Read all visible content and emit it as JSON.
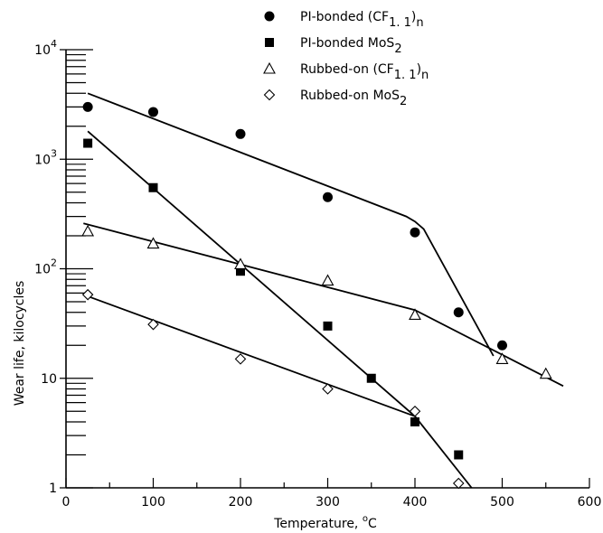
{
  "chart_data": {
    "type": "scatter",
    "title": "",
    "xlabel": "Temperature, °C",
    "ylabel": "Wear life, kilocycles",
    "xlim": [
      0,
      600
    ],
    "ylim": [
      1,
      10000
    ],
    "yscale": "log",
    "grid": false,
    "legend_position": "top-right",
    "x_ticks": [
      "0",
      "100",
      "200",
      "300",
      "400",
      "500",
      "600"
    ],
    "y_ticks": [
      {
        "value": 1,
        "label": "1"
      },
      {
        "value": 10,
        "label": "10"
      },
      {
        "value": 100,
        "label": "10",
        "sup": "2"
      },
      {
        "value": 1000,
        "label": "10",
        "sup": "3"
      },
      {
        "value": 10000,
        "label": "10",
        "sup": "4"
      }
    ],
    "series": [
      {
        "name": "PI-bonded (CF1.1)n",
        "legend": {
          "pre": "PI-bonded (CF",
          "sub": "1. 1",
          "post": ")",
          "sub2": "n"
        },
        "marker": "circle-filled",
        "points": [
          [
            25,
            3000
          ],
          [
            100,
            2700
          ],
          [
            200,
            1700
          ],
          [
            300,
            450
          ],
          [
            400,
            215
          ],
          [
            450,
            40
          ],
          [
            500,
            20
          ]
        ],
        "fit": [
          [
            25,
            4000
          ],
          [
            390,
            300
          ],
          [
            400,
            270
          ],
          [
            410,
            230
          ],
          [
            490,
            16
          ]
        ]
      },
      {
        "name": "PI-bonded MoS2",
        "legend": {
          "pre": "PI-bonded MoS",
          "sub": "2",
          "post": "",
          "sub2": ""
        },
        "marker": "square-filled",
        "points": [
          [
            25,
            1400
          ],
          [
            100,
            550
          ],
          [
            200,
            95
          ],
          [
            300,
            30
          ],
          [
            350,
            10
          ],
          [
            400,
            4
          ],
          [
            450,
            2
          ]
        ],
        "fit": [
          [
            25,
            1800
          ],
          [
            400,
            4.5
          ],
          [
            465,
            1
          ]
        ]
      },
      {
        "name": "Rubbed-on (CF1.1)n",
        "legend": {
          "pre": "Rubbed-on (CF",
          "sub": "1. 1",
          "post": ")",
          "sub2": "n"
        },
        "marker": "triangle-open",
        "points": [
          [
            25,
            220
          ],
          [
            100,
            170
          ],
          [
            200,
            110
          ],
          [
            300,
            78
          ],
          [
            400,
            38
          ],
          [
            500,
            15
          ],
          [
            550,
            11
          ]
        ],
        "fit": [
          [
            20,
            260
          ],
          [
            400,
            42
          ],
          [
            570,
            8.5
          ]
        ]
      },
      {
        "name": "Rubbed-on MoS2",
        "legend": {
          "pre": "Rubbed-on MoS",
          "sub": "2",
          "post": "",
          "sub2": ""
        },
        "marker": "diamond-open",
        "points": [
          [
            25,
            58
          ],
          [
            100,
            31
          ],
          [
            200,
            15
          ],
          [
            300,
            8
          ],
          [
            400,
            5
          ],
          [
            450,
            1.1
          ]
        ],
        "fit": [
          [
            20,
            58
          ],
          [
            400,
            4.5
          ]
        ]
      }
    ]
  }
}
